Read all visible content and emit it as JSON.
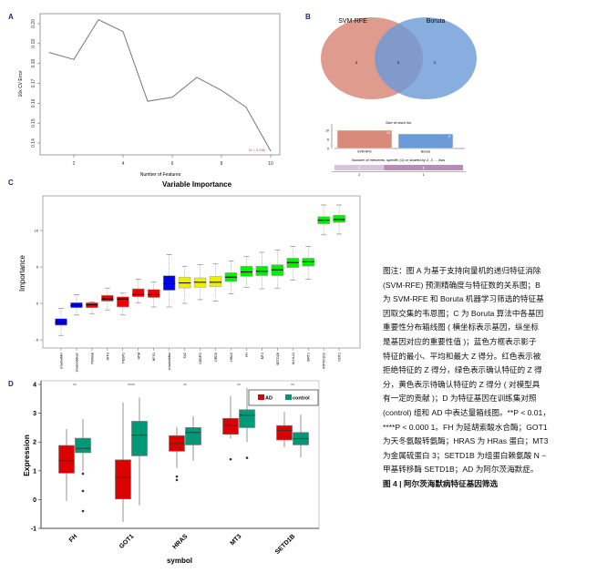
{
  "panels": {
    "a": "A",
    "b": "B",
    "c": "C",
    "d": "D"
  },
  "chart_data": [
    {
      "type": "line",
      "id": "A",
      "xlabel": "Number of Features",
      "ylabel": "10x CV Error",
      "xlim": [
        1,
        10
      ],
      "ylim": [
        0.135,
        0.203
      ],
      "xticks": [
        2,
        4,
        6,
        8,
        10
      ],
      "yticks": [
        0.14,
        0.15,
        0.16,
        0.17,
        0.18,
        0.19,
        0.2
      ],
      "x": [
        1,
        2,
        3,
        4,
        5,
        6,
        7,
        8,
        9,
        10
      ],
      "y": [
        0.1855,
        0.182,
        0.202,
        0.196,
        0.161,
        0.163,
        0.173,
        0.1665,
        0.158,
        0.136
      ],
      "annotation": "N = 0.136",
      "annotation_color": "#e03030"
    },
    {
      "type": "venn",
      "id": "B",
      "sets": [
        {
          "name": "SVM-RFE",
          "only": 5,
          "color": "#d9897a"
        },
        {
          "name": "Boruta",
          "only": 3,
          "color": "#6a9ad8"
        }
      ],
      "shared": 5,
      "size_title": "Size of each list",
      "sizes": [
        {
          "name": "SVM-RFE",
          "value": 10
        },
        {
          "name": "Boruta",
          "value": 8
        }
      ],
      "size_ticks": [
        0,
        5,
        10
      ],
      "shared_title": "Number of elements: specific (1) or shared by 2, 3, ... lists",
      "shared_bar": [
        {
          "label": "2",
          "value": 5,
          "color": "#d9c4dc"
        },
        {
          "label": "1",
          "value": 8,
          "color": "#b98bb8"
        }
      ]
    },
    {
      "type": "box",
      "id": "C",
      "title": "Variable Importance",
      "ylabel": "Importance",
      "ylim": [
        -6,
        14
      ],
      "yticks": [
        -5,
        0,
        5,
        10
      ],
      "boxes": [
        {
          "name": "shadowMin",
          "med": -2.6,
          "q1": -3.0,
          "q3": -2.1,
          "min": -4.4,
          "max": -0.7,
          "color": "#0000ee"
        },
        {
          "name": "shadowMean",
          "med": -0.3,
          "q1": -0.6,
          "q3": 0.1,
          "min": -1.6,
          "max": 1.2,
          "color": "#0000ee"
        },
        {
          "name": "YWHAB",
          "med": -0.2,
          "q1": -0.6,
          "q3": 0.1,
          "min": -1.4,
          "max": 0.2,
          "color": "#ee0000"
        },
        {
          "name": "ATF3",
          "med": 0.6,
          "q1": 0.3,
          "q3": 1.1,
          "min": -0.9,
          "max": 2.1,
          "color": "#ee0000"
        },
        {
          "name": "PEBP1",
          "med": 0.6,
          "q1": -0.5,
          "q3": 0.9,
          "min": -1.6,
          "max": 1.4,
          "color": "#ee0000"
        },
        {
          "name": "ATM",
          "med": 1.2,
          "q1": 0.9,
          "q3": 2.0,
          "min": 0.1,
          "max": 3.3,
          "color": "#ee0000"
        },
        {
          "name": "NFS1",
          "med": 1.2,
          "q1": 0.8,
          "q3": 1.9,
          "min": -0.5,
          "max": 2.9,
          "color": "#ee0000"
        },
        {
          "name": "shadowMax",
          "med": 2.7,
          "q1": 1.8,
          "q3": 3.8,
          "min": -0.5,
          "max": 6.7,
          "color": "#0000ee"
        },
        {
          "name": "TAZ",
          "med": 2.8,
          "q1": 2.1,
          "q3": 3.6,
          "min": 0.0,
          "max": 5.1,
          "color": "#eeee00"
        },
        {
          "name": "CEBPG",
          "med": 2.9,
          "q1": 2.2,
          "q3": 3.5,
          "min": 0.5,
          "max": 5.3,
          "color": "#eeee00"
        },
        {
          "name": "DRD5",
          "med": 2.9,
          "q1": 2.3,
          "q3": 3.7,
          "min": 0.3,
          "max": 5.4,
          "color": "#eeee00"
        },
        {
          "name": "HRAS",
          "med": 3.6,
          "q1": 3.0,
          "q3": 4.2,
          "min": 1.3,
          "max": 5.8,
          "color": "#00ee00"
        },
        {
          "name": "FH",
          "med": 4.3,
          "q1": 3.7,
          "q3": 5.1,
          "min": 2.2,
          "max": 6.4,
          "color": "#00ee00"
        },
        {
          "name": "MT3",
          "med": 4.4,
          "q1": 3.8,
          "q3": 5.1,
          "min": 2.0,
          "max": 7.0,
          "color": "#00ee00"
        },
        {
          "name": "SETD1B",
          "med": 4.6,
          "q1": 3.8,
          "q3": 5.3,
          "min": 2.1,
          "max": 7.3,
          "color": "#00ee00"
        },
        {
          "name": "KLHL24",
          "med": 5.6,
          "q1": 4.9,
          "q3": 6.2,
          "min": 3.2,
          "max": 7.8,
          "color": "#00ee00"
        },
        {
          "name": "SIRT1",
          "med": 5.7,
          "q1": 5.1,
          "q3": 6.2,
          "min": 3.3,
          "max": 7.8,
          "color": "#00ee00"
        },
        {
          "name": "ATP6V1G2",
          "med": 11.4,
          "q1": 10.9,
          "q3": 11.9,
          "min": 9.4,
          "max": 13.5,
          "color": "#00ee00"
        },
        {
          "name": "GOT1",
          "med": 11.5,
          "q1": 11.1,
          "q3": 12.1,
          "min": 9.5,
          "max": 13.5,
          "color": "#00ee00"
        }
      ]
    },
    {
      "type": "box",
      "id": "D",
      "xlabel": "symbol",
      "ylabel": "Expression",
      "ylim": [
        -1,
        4
      ],
      "yticks": [
        -1,
        0,
        1,
        2,
        3,
        4
      ],
      "legend": [
        {
          "name": "AD",
          "color": "#dd0000"
        },
        {
          "name": "control",
          "color": "#009977"
        }
      ],
      "legend_position": "top-right",
      "groups": [
        {
          "name": "FH",
          "sig": "**",
          "AD": {
            "med": 1.35,
            "q1": 0.92,
            "q3": 1.88,
            "min": -0.05,
            "max": 2.45,
            "out": []
          },
          "control": {
            "med": 1.78,
            "q1": 1.63,
            "q3": 2.13,
            "min": 1.0,
            "max": 2.8,
            "out": [
              0.9,
              0.3,
              -0.4
            ]
          }
        },
        {
          "name": "GOT1",
          "sig": "****",
          "AD": {
            "med": 0.78,
            "q1": 0.02,
            "q3": 1.38,
            "min": -0.78,
            "max": 3.37,
            "out": []
          },
          "control": {
            "med": 2.24,
            "q1": 1.52,
            "q3": 2.72,
            "min": -0.2,
            "max": 3.55,
            "out": []
          }
        },
        {
          "name": "HRAS",
          "sig": "**",
          "AD": {
            "med": 1.95,
            "q1": 1.68,
            "q3": 2.22,
            "min": 1.1,
            "max": 2.52,
            "out": [
              0.8,
              0.68
            ]
          },
          "control": {
            "med": 2.33,
            "q1": 1.9,
            "q3": 2.5,
            "min": 1.35,
            "max": 2.9,
            "out": []
          }
        },
        {
          "name": "MT3",
          "sig": "**",
          "AD": {
            "med": 2.57,
            "q1": 2.27,
            "q3": 2.82,
            "min": 2.13,
            "max": 3.6,
            "out": [
              1.4
            ]
          },
          "control": {
            "med": 2.93,
            "q1": 2.5,
            "q3": 3.12,
            "min": 2.0,
            "max": 3.88,
            "out": [
              1.45
            ]
          }
        },
        {
          "name": "SETD1B",
          "sig": "**",
          "AD": {
            "med": 2.4,
            "q1": 2.07,
            "q3": 2.57,
            "min": 1.82,
            "max": 3.05,
            "out": []
          },
          "control": {
            "med": 2.12,
            "q1": 1.9,
            "q3": 2.33,
            "min": 1.47,
            "max": 2.95,
            "out": []
          }
        }
      ]
    }
  ],
  "caption": [
    "图注：图 A 为基于支持向量机的递归特征消除",
    "(SVM-RFE) 预测精确度与特征数的关系图；B",
    "为 SVM-RFE 和 Boruta 机器学习筛选的特征基",
    "因取交集的韦恩图；C 为 Boruta 算法中各基因",
    "重要性分布箱线图 ( 横坐标表示基因，纵坐标",
    "是基因对应的重要性值 )；蓝色方框表示影子",
    "特征的最小、平均和最大 Z 得分。红色表示被",
    "拒绝特征的 Z 得分，绿色表示确认特征的 Z 得",
    "分，黄色表示待确认特征的 Z 得分 ( 对模型具",
    "有一定的贡献 )；D 为特征基因在训练集对照",
    "(control) 组和 AD 中表达量箱线图。**P < 0.01，",
    "****P < 0.000 1。FH 为延胡索酸水合酶；GOT1",
    "为天冬氨酸转氨酶；HRAS 为 HRas 蛋白；MT3",
    "为金属硫蛋白 3；SETD1B 为组蛋白赖氨酸 N −",
    "甲基转移酶 SETD1B；AD 为阿尔茨海默症。",
    "图 4 | 阿尔茨海默病特征基因筛选"
  ]
}
